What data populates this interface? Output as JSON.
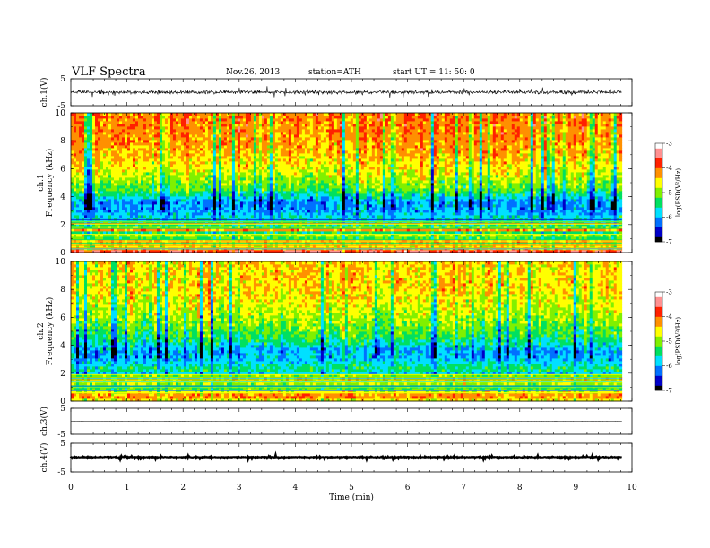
{
  "header": {
    "title": "VLF  Spectra",
    "date": "Nov.26, 2013",
    "station": "station=ATH",
    "start": "start  UT  =    11: 50: 0"
  },
  "chart_data": [
    {
      "type": "line",
      "name": "ch1-waveform",
      "ylabel": "ch.1(V)",
      "ylim": [
        -5,
        5
      ],
      "y_ticks": [
        "5",
        "-5"
      ],
      "xlim": [
        0,
        10
      ],
      "x_end": 9.82,
      "baseline": 0,
      "amplitude": 1.2
    },
    {
      "type": "heatmap",
      "name": "ch1-spectrogram",
      "ylabel": "ch.1\nFrequency (kHz)",
      "ylabel_lines": [
        "ch.1",
        "Frequency (kHz)"
      ],
      "ylim": [
        0,
        10
      ],
      "y_ticks": [
        "0",
        "2",
        "4",
        "6",
        "8",
        "10"
      ],
      "xlim": [
        0,
        10
      ],
      "x_end": 9.82,
      "z_range": [
        -7,
        -3
      ],
      "colorbar_label": "log(PSD(V²/Hz)",
      "colorbar_ticks": [
        "-3",
        "-4",
        "-5",
        "-6",
        "-7"
      ],
      "colorscale": [
        "#000000",
        "#0000c8",
        "#0070ff",
        "#00e0ff",
        "#00e060",
        "#80f000",
        "#ffff00",
        "#ff9000",
        "#ff2000",
        "#ff9090",
        "#ffffff"
      ],
      "profile": [
        {
          "f": 0.3,
          "z": -3.8
        },
        {
          "f": 1.0,
          "z": -4.8
        },
        {
          "f": 2.0,
          "z": -5.4
        },
        {
          "f": 3.0,
          "z": -6.0
        },
        {
          "f": 3.6,
          "z": -6.1
        },
        {
          "f": 4.5,
          "z": -5.2
        },
        {
          "f": 6.0,
          "z": -4.6
        },
        {
          "f": 8.0,
          "z": -4.2
        },
        {
          "f": 10.0,
          "z": -4.1
        }
      ]
    },
    {
      "type": "heatmap",
      "name": "ch2-spectrogram",
      "ylabel": "ch.2\nFrequency (kHz)",
      "ylabel_lines": [
        "ch.2",
        "Frequency (kHz)"
      ],
      "ylim": [
        0,
        10
      ],
      "y_ticks": [
        "0",
        "2",
        "4",
        "6",
        "8",
        "10"
      ],
      "xlim": [
        0,
        10
      ],
      "x_end": 9.82,
      "z_range": [
        -7,
        -3
      ],
      "colorbar_label": "log(PSD(V²/Hz)",
      "colorbar_ticks": [
        "-3",
        "-4",
        "-5",
        "-6",
        "-7"
      ],
      "colorscale": [
        "#000000",
        "#0000c8",
        "#0070ff",
        "#00e0ff",
        "#00e060",
        "#80f000",
        "#ffff00",
        "#ff9000",
        "#ff2000",
        "#ff9090",
        "#ffffff"
      ],
      "profile": [
        {
          "f": 0.3,
          "z": -4.2
        },
        {
          "f": 1.0,
          "z": -5.0
        },
        {
          "f": 2.0,
          "z": -5.2
        },
        {
          "f": 3.0,
          "z": -5.9
        },
        {
          "f": 3.6,
          "z": -6.0
        },
        {
          "f": 4.5,
          "z": -5.4
        },
        {
          "f": 6.0,
          "z": -4.9
        },
        {
          "f": 8.0,
          "z": -4.5
        },
        {
          "f": 10.0,
          "z": -4.5
        }
      ]
    },
    {
      "type": "line",
      "name": "ch3-waveform",
      "ylabel": "ch.3(V)",
      "ylim": [
        -5,
        5
      ],
      "y_ticks": [
        "5",
        "-5"
      ],
      "xlim": [
        0,
        10
      ],
      "x_end": 9.82,
      "baseline": 0,
      "amplitude": 0.05
    },
    {
      "type": "line",
      "name": "ch4-waveform",
      "ylabel": "ch.4(V)",
      "ylim": [
        -5,
        5
      ],
      "y_ticks": [
        "5",
        "-5"
      ],
      "xlim": [
        0,
        10
      ],
      "x_end": 9.82,
      "baseline": 0,
      "amplitude": 0.3
    }
  ],
  "x_axis": {
    "label": "Time  (min)",
    "ticks": [
      "0",
      "1",
      "2",
      "3",
      "4",
      "5",
      "6",
      "7",
      "8",
      "9",
      "10"
    ]
  }
}
